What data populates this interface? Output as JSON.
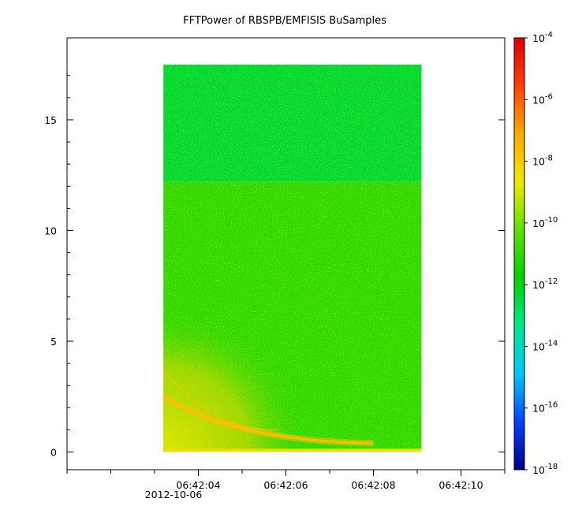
{
  "chart_data": {
    "type": "heatmap",
    "title": "FFTPower of RBSPB/EMFISIS  BuSamples",
    "xlabel": "",
    "ylabel": "",
    "x_tick_labels": [
      "06:42:04",
      "06:42:06",
      "06:42:08",
      "06:42:10"
    ],
    "x_tick_values_seconds": [
      4,
      6,
      8,
      10
    ],
    "x_date_label": "2012-10-06",
    "xlim_seconds": [
      1.0,
      11.0
    ],
    "data_x_range_seconds": [
      3.2,
      9.1
    ],
    "y_tick_labels": [
      "0",
      "5",
      "10",
      "15"
    ],
    "y_tick_values": [
      0,
      5,
      10,
      15
    ],
    "ylim": [
      -0.8,
      18.7
    ],
    "data_y_range": [
      0,
      17.5
    ],
    "colorbar": {
      "scale": "log",
      "range_exponent": [
        -18,
        -4
      ],
      "tick_exponents": [
        -18,
        -16,
        -14,
        -12,
        -10,
        -8,
        -6,
        -4
      ],
      "tick_base": "10",
      "colormap": [
        "#00008b",
        "#0040ff",
        "#00c8ff",
        "#00e890",
        "#00d000",
        "#60e000",
        "#f0e800",
        "#ffaa00",
        "#ff4000",
        "#e00000"
      ]
    },
    "structure": {
      "upper_band": {
        "y_range": [
          12.2,
          17.5
        ],
        "level_exponent": -12.3
      },
      "middle_band": {
        "y_range": [
          0,
          12.2
        ],
        "level_exponent": -11.0
      },
      "enhanced_region": {
        "y_range": [
          0,
          6.5
        ],
        "x_range_seconds": [
          3.2,
          6.5
        ],
        "level_exponent": -8.8
      },
      "dispersed_trace": {
        "start": [
          3.2,
          2.5
        ],
        "end": [
          8.0,
          0.4
        ],
        "level_exponent": -7.6
      },
      "baseline_row": {
        "y": 0,
        "level_exponent": -8.3
      }
    },
    "grid": false,
    "legend": "none"
  }
}
